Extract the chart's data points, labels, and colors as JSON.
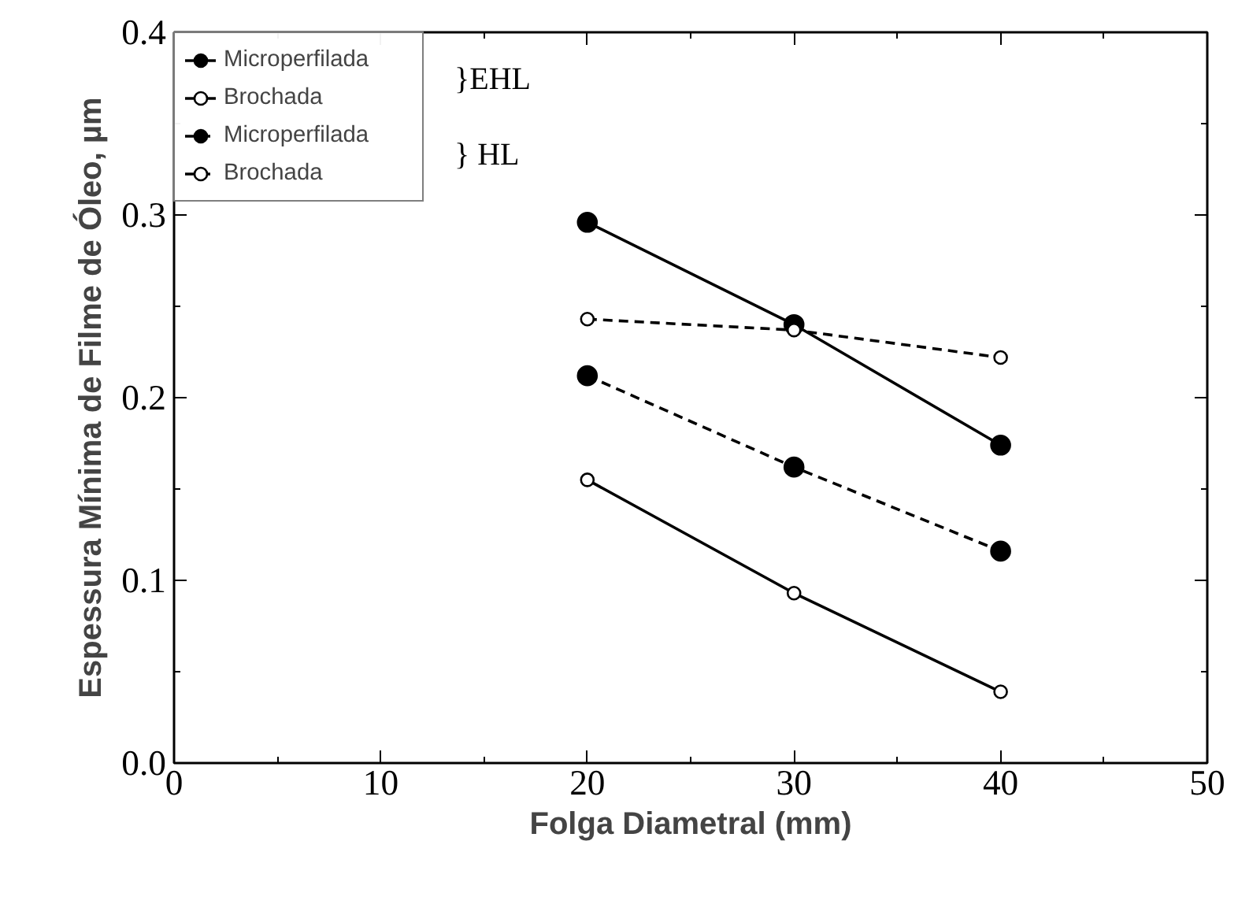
{
  "chart_data": {
    "type": "line",
    "xlabel": "Folga Diametral (mm)",
    "ylabel": "Espessura Mínima de Filme de Óleo, µm",
    "x": [
      20,
      30,
      40
    ],
    "series": [
      {
        "name": "Microperfilada",
        "color": "#000000",
        "values": [
          0.296,
          0.24,
          0.174
        ],
        "marker": "circle",
        "line_style": "solid"
      },
      {
        "name": "Brochada",
        "color": "#000000",
        "values": [
          0.155,
          0.093,
          0.039
        ],
        "marker": "circle_open",
        "line_style": "solid"
      },
      {
        "name": "Microperfilada",
        "color": "#000000",
        "values": [
          0.212,
          0.162,
          0.116
        ],
        "marker": "circle",
        "line_style": "dashed"
      },
      {
        "name": "Brochada",
        "color": "#000000",
        "values": [
          0.243,
          0.237,
          0.222
        ],
        "marker": "circle_open",
        "line_style": "dashed"
      }
    ],
    "annotations": [
      "}EHL",
      "} HL"
    ],
    "xlim": [
      0,
      50
    ],
    "xticks": [
      0,
      10,
      20,
      30,
      40,
      50
    ],
    "ylim": [
      0,
      0.4
    ],
    "yticks": [
      {
        "value": 0,
        "label": "0.0"
      },
      0.1,
      0.2,
      0.3,
      0.4
    ],
    "grid": false,
    "legend": "top left"
  }
}
